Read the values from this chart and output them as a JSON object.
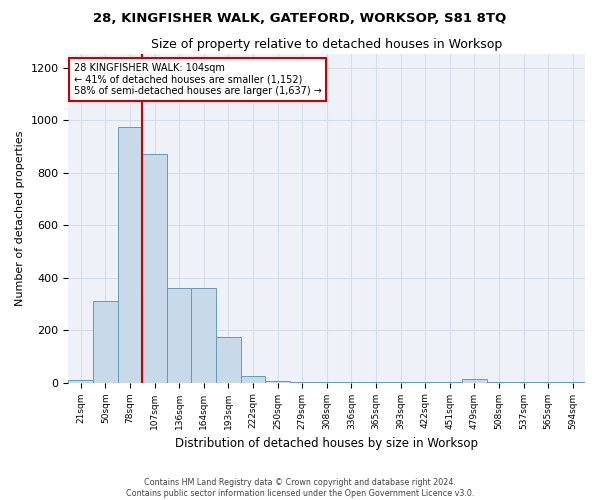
{
  "title": "28, KINGFISHER WALK, GATEFORD, WORKSOP, S81 8TQ",
  "subtitle": "Size of property relative to detached houses in Worksop",
  "xlabel": "Distribution of detached houses by size in Worksop",
  "ylabel": "Number of detached properties",
  "categories": [
    "21sqm",
    "50sqm",
    "78sqm",
    "107sqm",
    "136sqm",
    "164sqm",
    "193sqm",
    "222sqm",
    "250sqm",
    "279sqm",
    "308sqm",
    "336sqm",
    "365sqm",
    "393sqm",
    "422sqm",
    "451sqm",
    "479sqm",
    "508sqm",
    "537sqm",
    "565sqm",
    "594sqm"
  ],
  "values": [
    10,
    310,
    975,
    870,
    360,
    360,
    175,
    25,
    5,
    3,
    3,
    3,
    3,
    3,
    3,
    3,
    12,
    3,
    3,
    3,
    3
  ],
  "bar_color": "#c8d9ea",
  "bar_edge_color": "#6699bb",
  "marker_line_color": "#cc0000",
  "annotation_box_edge_color": "#cc0000",
  "ylim": [
    0,
    1250
  ],
  "yticks": [
    0,
    200,
    400,
    600,
    800,
    1000,
    1200
  ],
  "grid_color": "#d5dde8",
  "bg_color": "#eef2f8",
  "footer_line1": "Contains HM Land Registry data © Crown copyright and database right 2024.",
  "footer_line2": "Contains public sector information licensed under the Open Government Licence v3.0."
}
